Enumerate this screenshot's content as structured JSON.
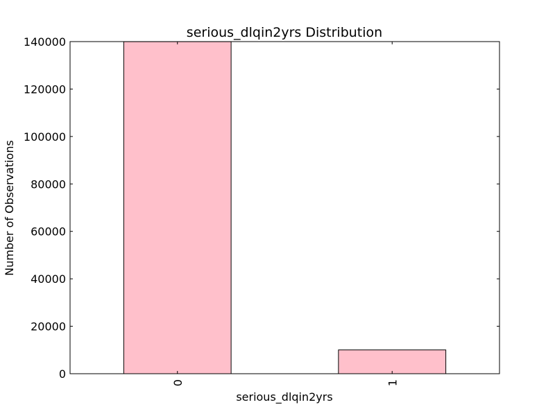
{
  "chart_data": {
    "type": "bar",
    "title": "serious_dlqin2yrs Distribution",
    "xlabel": "serious_dlqin2yrs",
    "ylabel": "Number of Observations",
    "categories": [
      "0",
      "1"
    ],
    "values": [
      139974,
      10026
    ],
    "ylim": [
      0,
      140000
    ],
    "yticks": [
      0,
      20000,
      40000,
      60000,
      80000,
      100000,
      120000,
      140000
    ],
    "grid": false,
    "legend": "none",
    "bar_color": "#FFC0CB",
    "edge_color": "#000000"
  }
}
